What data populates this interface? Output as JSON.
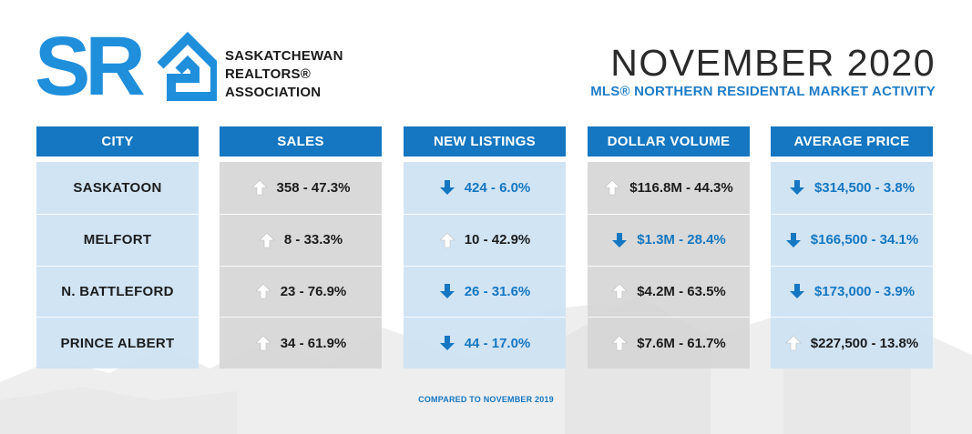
{
  "header": {
    "org_name": [
      "SASKATCHEWAN",
      "REALTORS®",
      "ASSOCIATION"
    ],
    "logo_letters": "SR",
    "title": "NOVEMBER 2020",
    "subtitle": "MLS® NORTHERN RESIDENTAL MARKET ACTIVITY"
  },
  "footnote": "COMPARED TO NOVEMBER 2019",
  "colors": {
    "brand_blue": "#1577c1",
    "logo_blue": "#1f8fdc",
    "light_blue_cell": "#cde2f3",
    "grey_cell": "#d6d6d6"
  },
  "chart_data": {
    "type": "table",
    "title": "NOVEMBER 2020",
    "subtitle": "MLS® NORTHERN RESIDENTAL MARKET ACTIVITY",
    "note": "COMPARED TO NOVEMBER 2019",
    "columns": [
      "CITY",
      "SALES",
      "NEW LISTINGS",
      "DOLLAR VOLUME",
      "AVERAGE PRICE"
    ],
    "rows": [
      {
        "city": "SASKATOON",
        "sales": {
          "text": "358 - 47.3%",
          "trend": "up"
        },
        "new_listings": {
          "text": "424 - 6.0%",
          "trend": "down"
        },
        "dollar_volume": {
          "text": "$116.8M - 44.3%",
          "trend": "up"
        },
        "average_price": {
          "text": "$314,500 - 3.8%",
          "trend": "down"
        }
      },
      {
        "city": "MELFORT",
        "sales": {
          "text": "8 - 33.3%",
          "trend": "up"
        },
        "new_listings": {
          "text": "10 -  42.9%",
          "trend": "up"
        },
        "dollar_volume": {
          "text": "$1.3M - 28.4%",
          "trend": "down"
        },
        "average_price": {
          "text": "$166,500 - 34.1%",
          "trend": "down"
        }
      },
      {
        "city": "N. BATTLEFORD",
        "sales": {
          "text": "23 - 76.9%",
          "trend": "up"
        },
        "new_listings": {
          "text": "26 - 31.6%",
          "trend": "down"
        },
        "dollar_volume": {
          "text": "$4.2M - 63.5%",
          "trend": "up"
        },
        "average_price": {
          "text": "$173,000 - 3.9%",
          "trend": "down"
        }
      },
      {
        "city": "PRINCE ALBERT",
        "sales": {
          "text": "34 - 61.9%",
          "trend": "up"
        },
        "new_listings": {
          "text": "44 - 17.0%",
          "trend": "down"
        },
        "dollar_volume": {
          "text": "$7.6M - 61.7%",
          "trend": "up"
        },
        "average_price": {
          "text": "$227,500 - 13.8%",
          "trend": "up"
        }
      }
    ]
  }
}
